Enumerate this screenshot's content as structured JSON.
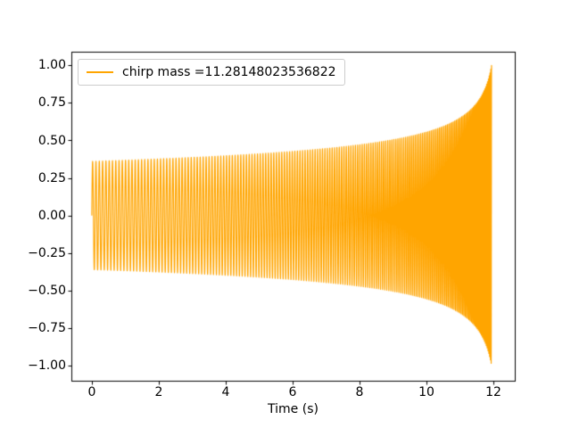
{
  "figure": {
    "background": "#ffffff",
    "spine_color": "#000000",
    "tick_color": "#000000",
    "text_color": "#000000"
  },
  "chart_data": {
    "type": "line",
    "title": "",
    "xlabel": "Time (s)",
    "ylabel": "",
    "xlim": [
      -0.61,
      12.64
    ],
    "ylim": [
      -1.1,
      1.09
    ],
    "x_ticks": [
      0,
      2,
      4,
      6,
      8,
      10,
      12
    ],
    "x_tick_labels": [
      "0",
      "2",
      "4",
      "6",
      "8",
      "10",
      "12"
    ],
    "y_ticks": [
      1.0,
      0.75,
      0.5,
      0.25,
      0.0,
      -0.25,
      -0.5,
      -0.75,
      -1.0
    ],
    "y_tick_labels": [
      "1.00",
      "0.75",
      "0.50",
      "0.25",
      "0.00",
      "−0.25",
      "−0.50",
      "−0.75",
      "−1.00"
    ],
    "grid": false,
    "legend": {
      "position": "upper left",
      "entries": [
        {
          "label": "chirp mass =11.28148023536822",
          "color": "#FFA500"
        }
      ]
    },
    "series": [
      {
        "name": "chirp mass =11.28148023536822",
        "color": "#FFA500",
        "line_width": 1.2,
        "signal": {
          "kind": "inspiral-chirp: amplitude and frequency increase to coalescence, then abrupt cutoff",
          "t_start": 0,
          "t_end": 11.946,
          "t_coalescence": 12.15,
          "amplitude_start": 0.36,
          "amplitude_peak": 1.0,
          "amp_exponent": -0.25,
          "f_start_hz": 10,
          "freq_exponent": -0.375
        },
        "envelope_samples": [
          [
            0,
            0.36
          ],
          [
            1,
            0.368
          ],
          [
            2,
            0.377
          ],
          [
            3,
            0.387
          ],
          [
            4,
            0.398
          ],
          [
            5,
            0.411
          ],
          [
            6,
            0.427
          ],
          [
            7,
            0.446
          ],
          [
            8,
            0.471
          ],
          [
            9,
            0.504
          ],
          [
            10,
            0.555
          ],
          [
            10.5,
            0.593
          ],
          [
            11,
            0.649
          ],
          [
            11.5,
            0.75
          ],
          [
            11.8,
            0.874
          ],
          [
            11.9,
            0.948
          ],
          [
            11.946,
            1.0
          ]
        ]
      }
    ]
  }
}
